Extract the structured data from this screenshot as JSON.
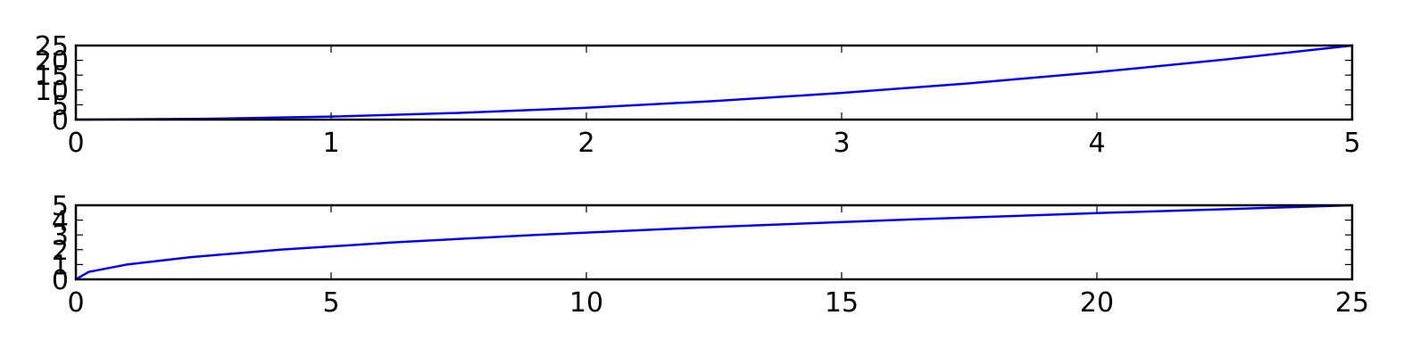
{
  "chart_data": [
    {
      "type": "line",
      "title": "",
      "xlabel": "",
      "ylabel": "",
      "xlim": [
        0,
        5
      ],
      "ylim": [
        0,
        25
      ],
      "xticks": [
        0,
        1,
        2,
        3,
        4,
        5
      ],
      "yticks": [
        0,
        5,
        10,
        15,
        20,
        25
      ],
      "xtick_labels": [
        "0",
        "1",
        "2",
        "3",
        "4",
        "5"
      ],
      "ytick_labels": [
        "0",
        "5",
        "10",
        "15",
        "20",
        "25"
      ],
      "grid": false,
      "series": [
        {
          "color": "#0000ff",
          "x": [
            0,
            0.5,
            1,
            1.5,
            2,
            2.5,
            3,
            3.5,
            4,
            4.5,
            5
          ],
          "y": [
            0,
            0.25,
            1,
            2.25,
            4,
            6.25,
            9,
            12.25,
            16,
            20.25,
            25
          ]
        }
      ]
    },
    {
      "type": "line",
      "title": "",
      "xlabel": "",
      "ylabel": "",
      "xlim": [
        0,
        25
      ],
      "ylim": [
        0,
        5
      ],
      "xticks": [
        0,
        5,
        10,
        15,
        20,
        25
      ],
      "yticks": [
        0,
        1,
        2,
        3,
        4,
        5
      ],
      "xtick_labels": [
        "0",
        "5",
        "10",
        "15",
        "20",
        "25"
      ],
      "ytick_labels": [
        "0",
        "1",
        "2",
        "3",
        "4",
        "5"
      ],
      "grid": false,
      "series": [
        {
          "color": "#0000ff",
          "x": [
            0,
            0.25,
            1,
            2.25,
            4,
            6.25,
            9,
            12.25,
            16,
            20.25,
            25
          ],
          "y": [
            0,
            0.5,
            1,
            1.5,
            2,
            2.5,
            3,
            3.5,
            4,
            4.5,
            5
          ]
        }
      ]
    }
  ]
}
